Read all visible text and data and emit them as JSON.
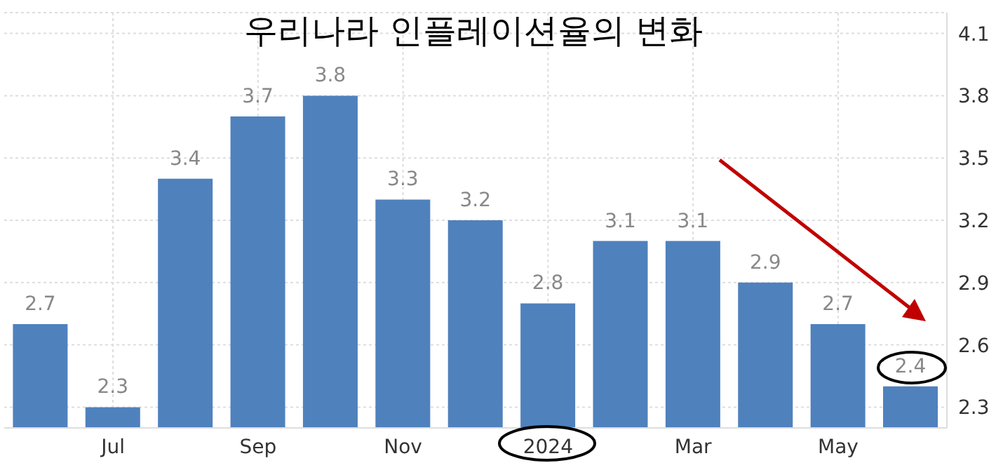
{
  "chart_data": {
    "type": "bar",
    "title": "우리나라 인플레이션율의 변화",
    "categories": [
      null,
      "Jul",
      null,
      "Sep",
      null,
      "Nov",
      null,
      "2024",
      null,
      "Mar",
      null,
      "May",
      null
    ],
    "values": [
      2.7,
      2.3,
      3.4,
      3.7,
      3.8,
      3.3,
      3.2,
      2.8,
      3.1,
      3.1,
      2.9,
      2.7,
      2.4
    ],
    "color": "#4f81bd",
    "ylim": [
      2.2,
      4.2
    ],
    "yticks": [
      2.3,
      2.6,
      2.9,
      3.2,
      3.5,
      3.8,
      4.1
    ],
    "grid": true,
    "data_labels": true
  }
}
